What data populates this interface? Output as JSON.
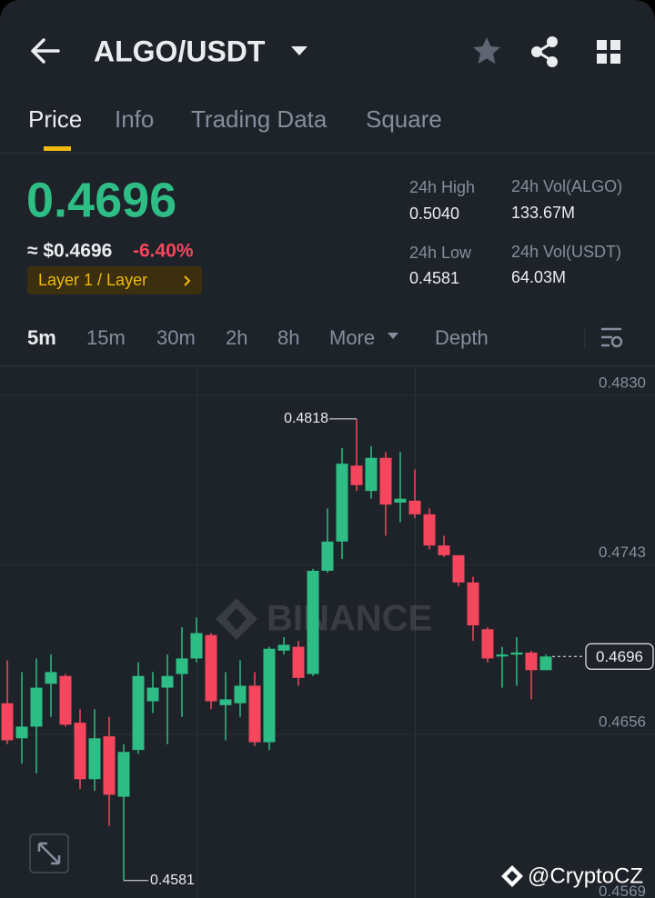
{
  "header": {
    "title": "ALGO/USDT"
  },
  "tabs": [
    "Price",
    "Info",
    "Trading Data",
    "Square"
  ],
  "price": {
    "last": "0.4696",
    "fiat": "≈ $0.4696",
    "change": "-6.40%",
    "tag": "Layer 1 / Layer"
  },
  "stats": [
    {
      "label": "24h High",
      "value": "0.5040"
    },
    {
      "label": "24h Vol(ALGO)",
      "value": "133.67M"
    },
    {
      "label": "24h Low",
      "value": "0.4581"
    },
    {
      "label": "24h Vol(USDT)",
      "value": "64.03M"
    }
  ],
  "intervals": [
    "5m",
    "15m",
    "30m",
    "2h",
    "8h",
    "More",
    "Depth"
  ],
  "watermarks": [
    "BINANCE",
    "@CryptoCZ"
  ],
  "chart_data": {
    "type": "candlestick",
    "up_color": "#2ebd85",
    "down_color": "#f6465d",
    "ylim": [
      0.4572,
      0.4845
    ],
    "yticks": [
      {
        "value": 0.483,
        "label": "0.4830"
      },
      0.4743,
      0.4656,
      0.4569
    ],
    "grid": true,
    "open": [
      0.4672,
      0.4654,
      0.466,
      0.4682,
      0.4686,
      0.4662,
      0.4633,
      0.4655,
      0.4624,
      0.4648,
      0.4673,
      0.468,
      0.4687,
      0.4695,
      0.4707,
      0.4671,
      0.4672,
      0.4681,
      0.4652,
      0.4699,
      0.4701,
      0.4687,
      0.474,
      0.4755,
      0.4794,
      0.4781,
      0.4798,
      0.4775,
      0.4776,
      0.4769,
      0.4753,
      0.4748,
      0.4734,
      0.471,
      0.4696,
      0.4697,
      0.4698,
      0.4689
    ],
    "high": [
      0.4694,
      0.4688,
      0.4695,
      0.4697,
      0.4687,
      0.4669,
      0.4669,
      0.4665,
      0.4651,
      0.4693,
      0.4688,
      0.4697,
      0.4711,
      0.4716,
      0.4708,
      0.4688,
      0.4694,
      0.4688,
      0.4701,
      0.4706,
      0.4704,
      0.4741,
      0.4772,
      0.4803,
      0.4818,
      0.4804,
      0.4801,
      0.4801,
      0.4792,
      0.4772,
      0.4758,
      0.4748,
      0.4737,
      0.4711,
      0.4701,
      0.4706,
      0.4699,
      0.4697
    ],
    "low": [
      0.4651,
      0.4641,
      0.4636,
      0.4665,
      0.466,
      0.4628,
      0.4627,
      0.4609,
      0.4581,
      0.4646,
      0.4667,
      0.4651,
      0.4665,
      0.4693,
      0.4669,
      0.4653,
      0.4665,
      0.465,
      0.4648,
      0.4697,
      0.4681,
      0.4686,
      0.4739,
      0.4746,
      0.4781,
      0.4777,
      0.4758,
      0.4765,
      0.4767,
      0.4751,
      0.4747,
      0.4732,
      0.4704,
      0.4693,
      0.468,
      0.4681,
      0.4674,
      0.4689
    ],
    "close": [
      0.4653,
      0.466,
      0.468,
      0.4688,
      0.4661,
      0.4633,
      0.4654,
      0.4625,
      0.4647,
      0.4686,
      0.468,
      0.4686,
      0.4695,
      0.4708,
      0.4673,
      0.4674,
      0.4681,
      0.4652,
      0.47,
      0.4702,
      0.4685,
      0.474,
      0.4755,
      0.4795,
      0.4784,
      0.4798,
      0.4774,
      0.4777,
      0.4769,
      0.4753,
      0.4748,
      0.4734,
      0.4712,
      0.4695,
      0.4697,
      0.4698,
      0.4689,
      0.4696
    ]
  }
}
